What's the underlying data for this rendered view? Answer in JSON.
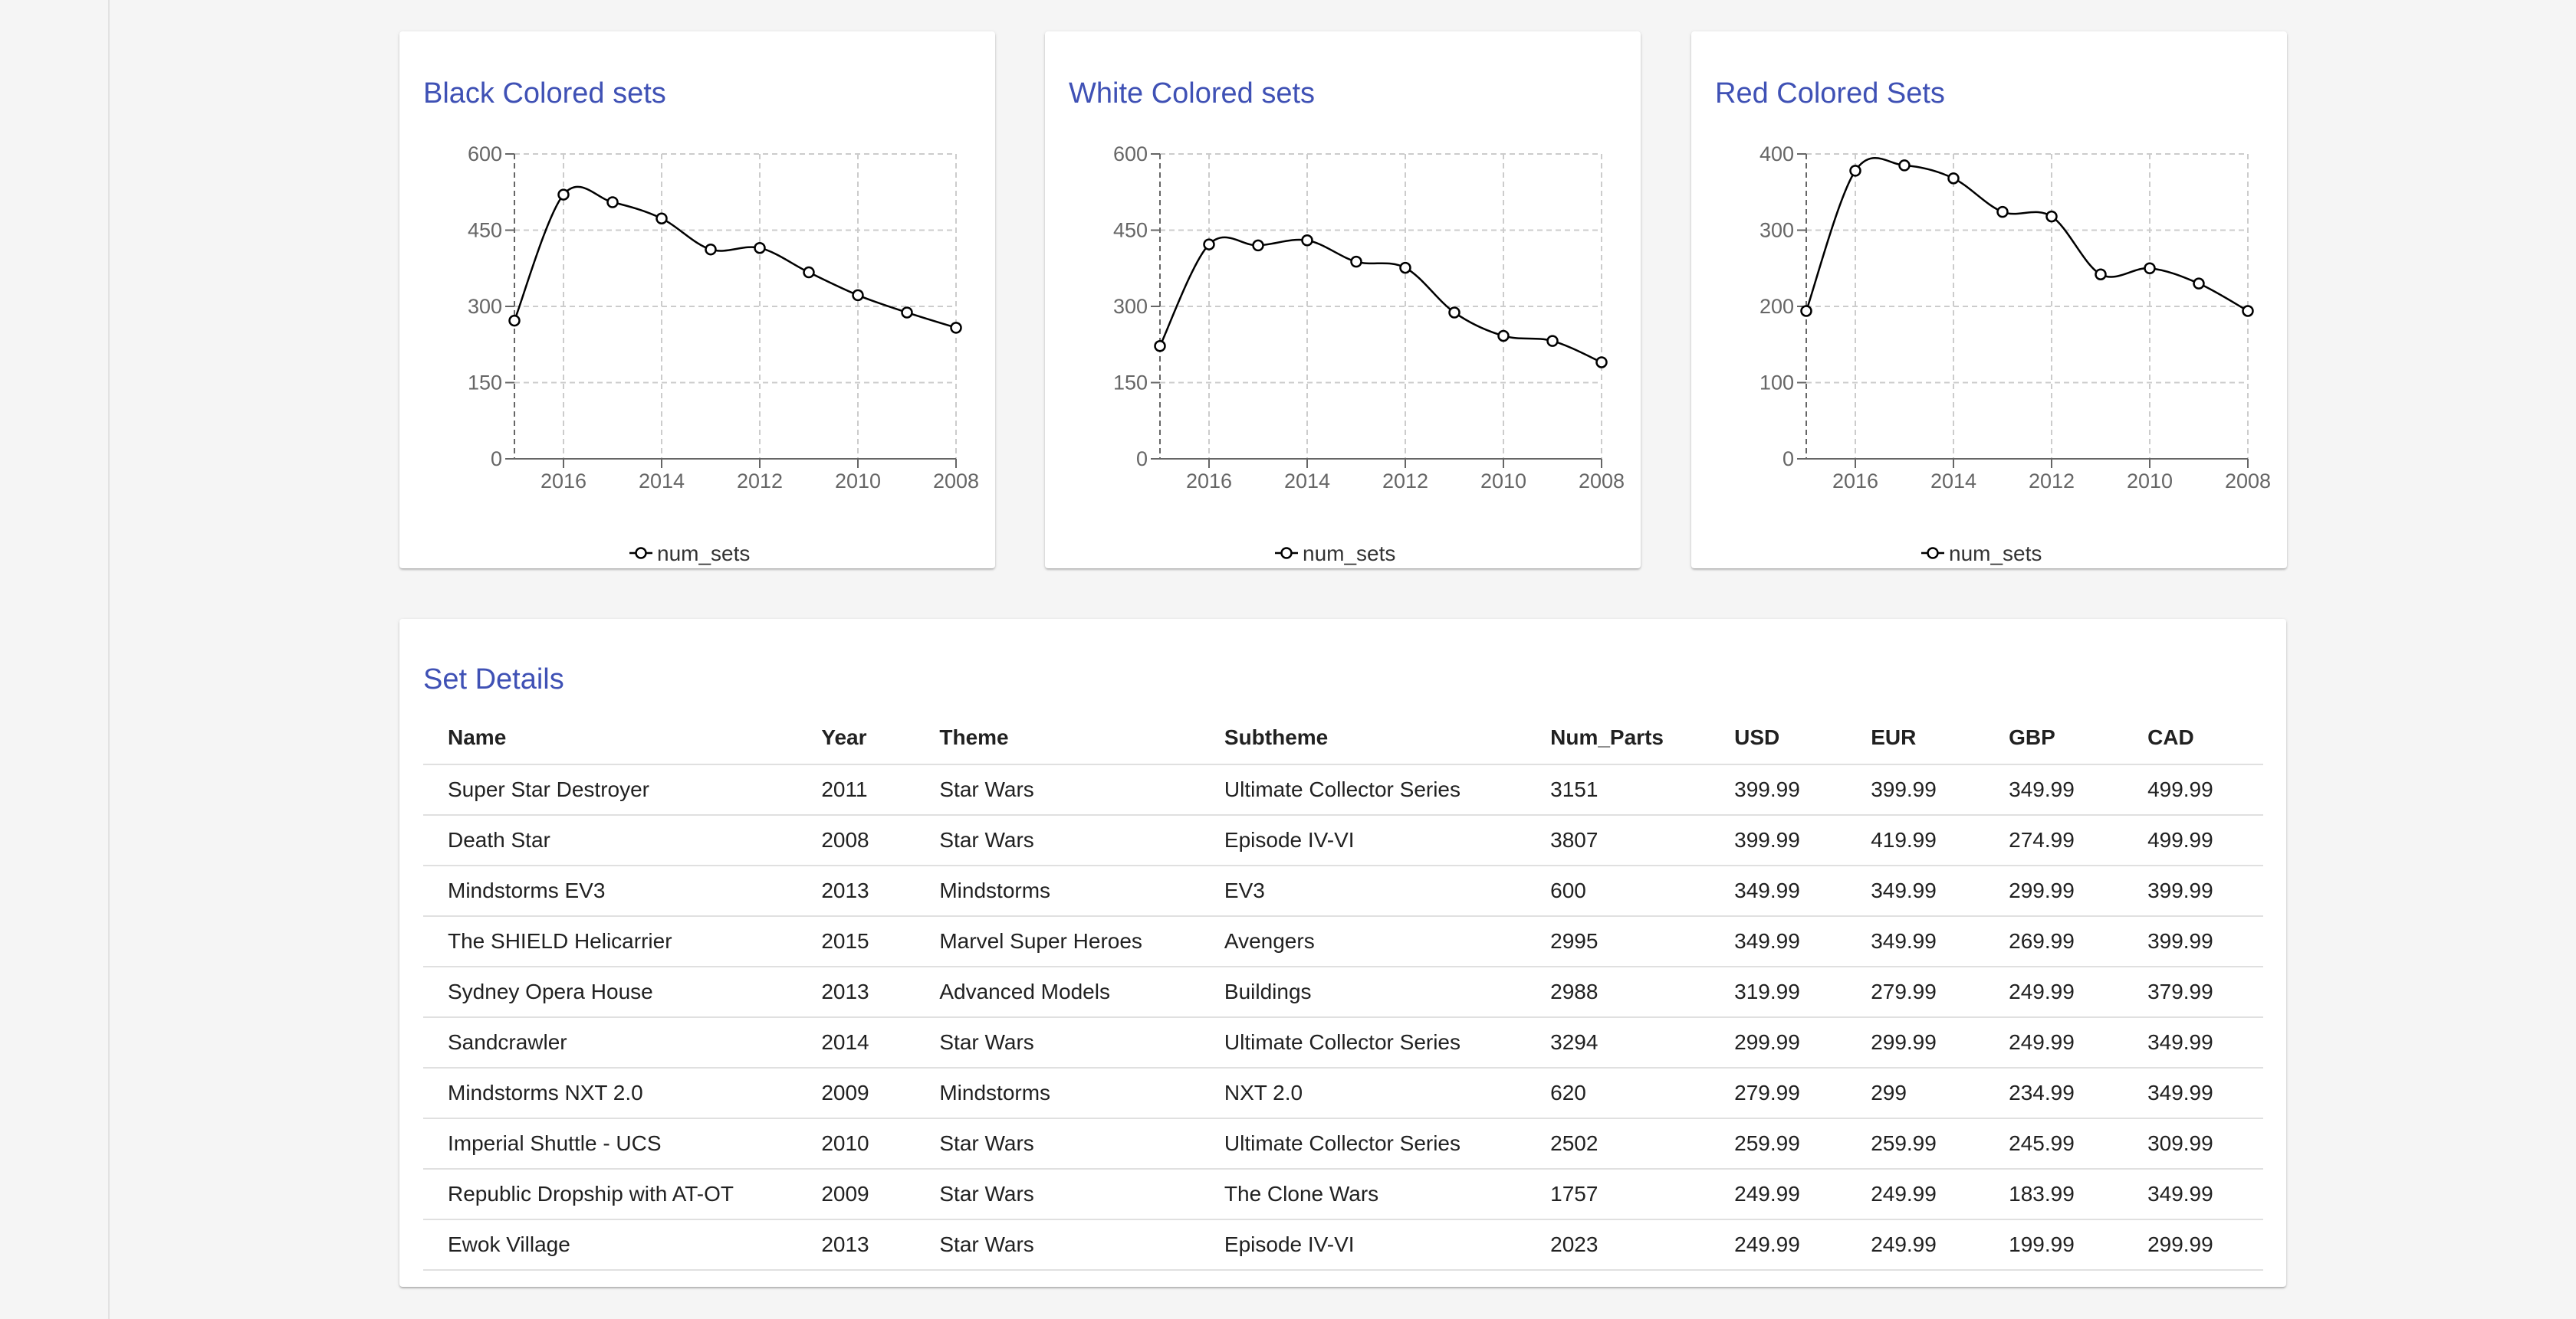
{
  "charts": [
    {
      "id": "black",
      "title": "Black Colored sets",
      "chart_data": {
        "type": "line",
        "title": "Black Colored sets",
        "x": [
          2017,
          2016,
          2015,
          2014,
          2013,
          2012,
          2011,
          2010,
          2009,
          2008
        ],
        "x_ticks": [
          "2016",
          "2014",
          "2012",
          "2010",
          "2008"
        ],
        "y_ticks": [
          "0",
          "150",
          "300",
          "450",
          "600"
        ],
        "ylim": [
          0,
          600
        ],
        "x_reversed": true,
        "grid": true,
        "legend": "bottom",
        "series": [
          {
            "name": "num_sets",
            "values": [
              272,
              520,
              505,
              473,
              412,
              415,
              367,
              322,
              288,
              258
            ]
          }
        ]
      }
    },
    {
      "id": "white",
      "title": "White Colored sets",
      "chart_data": {
        "type": "line",
        "title": "White Colored sets",
        "x": [
          2017,
          2016,
          2015,
          2014,
          2013,
          2012,
          2011,
          2010,
          2009,
          2008
        ],
        "x_ticks": [
          "2016",
          "2014",
          "2012",
          "2010",
          "2008"
        ],
        "y_ticks": [
          "0",
          "150",
          "300",
          "450",
          "600"
        ],
        "ylim": [
          0,
          600
        ],
        "x_reversed": true,
        "grid": true,
        "legend": "bottom",
        "series": [
          {
            "name": "num_sets",
            "values": [
              222,
              422,
              420,
              430,
              388,
              376,
              288,
              242,
              232,
              190
            ]
          }
        ]
      }
    },
    {
      "id": "red",
      "title": "Red Colored Sets",
      "chart_data": {
        "type": "line",
        "title": "Red Colored Sets",
        "x": [
          2017,
          2016,
          2015,
          2014,
          2013,
          2012,
          2011,
          2010,
          2009,
          2008
        ],
        "x_ticks": [
          "2016",
          "2014",
          "2012",
          "2010",
          "2008"
        ],
        "y_ticks": [
          "0",
          "100",
          "200",
          "300",
          "400"
        ],
        "ylim": [
          0,
          400
        ],
        "x_reversed": true,
        "grid": true,
        "legend": "bottom",
        "series": [
          {
            "name": "num_sets",
            "values": [
              194,
              378,
              385,
              368,
              324,
              318,
              242,
              250,
              230,
              194
            ]
          }
        ]
      }
    }
  ],
  "table": {
    "title": "Set Details",
    "headers": [
      "Name",
      "Year",
      "Theme",
      "Subtheme",
      "Num_Parts",
      "USD",
      "EUR",
      "GBP",
      "CAD"
    ],
    "rows": [
      [
        "Super Star Destroyer",
        "2011",
        "Star Wars",
        "Ultimate Collector Series",
        "3151",
        "399.99",
        "399.99",
        "349.99",
        "499.99"
      ],
      [
        "Death Star",
        "2008",
        "Star Wars",
        "Episode IV-VI",
        "3807",
        "399.99",
        "419.99",
        "274.99",
        "499.99"
      ],
      [
        "Mindstorms EV3",
        "2013",
        "Mindstorms",
        "EV3",
        "600",
        "349.99",
        "349.99",
        "299.99",
        "399.99"
      ],
      [
        "The SHIELD Helicarrier",
        "2015",
        "Marvel Super Heroes",
        "Avengers",
        "2995",
        "349.99",
        "349.99",
        "269.99",
        "399.99"
      ],
      [
        "Sydney Opera House",
        "2013",
        "Advanced Models",
        "Buildings",
        "2988",
        "319.99",
        "279.99",
        "249.99",
        "379.99"
      ],
      [
        "Sandcrawler",
        "2014",
        "Star Wars",
        "Ultimate Collector Series",
        "3294",
        "299.99",
        "299.99",
        "249.99",
        "349.99"
      ],
      [
        "Mindstorms NXT 2.0",
        "2009",
        "Mindstorms",
        "NXT 2.0",
        "620",
        "279.99",
        "299",
        "234.99",
        "349.99"
      ],
      [
        "Imperial Shuttle - UCS",
        "2010",
        "Star Wars",
        "Ultimate Collector Series",
        "2502",
        "259.99",
        "259.99",
        "245.99",
        "309.99"
      ],
      [
        "Republic Dropship with AT-OT",
        "2009",
        "Star Wars",
        "The Clone Wars",
        "1757",
        "249.99",
        "249.99",
        "183.99",
        "349.99"
      ],
      [
        "Ewok Village",
        "2013",
        "Star Wars",
        "Episode IV-VI",
        "2023",
        "249.99",
        "249.99",
        "199.99",
        "299.99"
      ]
    ]
  },
  "colors": {
    "title": "#3f51b5",
    "grid": "#cccccc",
    "axis": "#666666",
    "line": "#000000",
    "background": "#f5f5f5"
  }
}
